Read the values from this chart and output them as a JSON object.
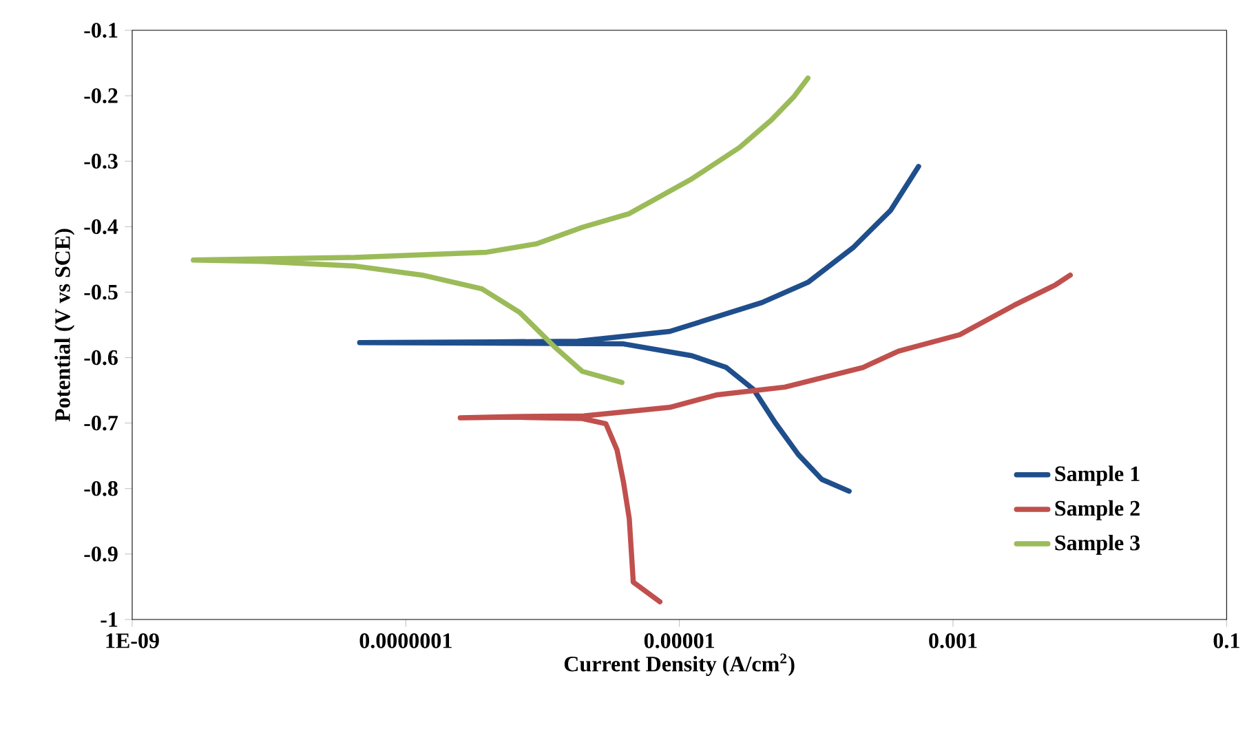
{
  "chart_data": {
    "type": "line",
    "xlabel": "Current Density (A/cm$^{2}$)",
    "ylabel": "Potential (V vs SCE)",
    "log": "x",
    "xlim": [
      1e-09,
      0.1
    ],
    "ylim": [
      -1,
      -0.1
    ],
    "xticks": [
      {
        "value": 1e-09,
        "label": "1E-09"
      },
      {
        "value": 1e-07,
        "label": "0.0000001"
      },
      {
        "value": 1e-05,
        "label": "0.00001"
      },
      {
        "value": 0.001,
        "label": "0.001"
      },
      {
        "value": 0.1,
        "label": "0.1"
      }
    ],
    "yticks": [
      -1,
      -0.9,
      -0.8,
      -0.7,
      -0.6,
      -0.5,
      -0.4,
      -0.3,
      -0.2,
      -0.1
    ],
    "grid": false,
    "legend": "bottom right",
    "marker": "none",
    "line_style": "solid",
    "series": [
      {
        "name": "Sample 1",
        "color": "#1f4e8c",
        "x": [
          0.000174,
          0.00011,
          7.4e-05,
          5e-05,
          3.5e-05,
          2.2e-05,
          1.23e-05,
          3.9e-06,
          4.3e-07,
          4.6e-08,
          4.3e-07,
          1.8e-06,
          8.5e-06,
          4e-05,
          8.7e-05,
          0.000186,
          0.00035,
          0.00056
        ],
        "values": [
          -0.804,
          -0.786,
          -0.748,
          -0.699,
          -0.649,
          -0.615,
          -0.597,
          -0.579,
          -0.578,
          -0.577,
          -0.576,
          -0.575,
          -0.56,
          -0.516,
          -0.485,
          -0.432,
          -0.375,
          -0.308
        ]
      },
      {
        "name": "Sample 2",
        "color": "#c0504d",
        "x": [
          7.2e-06,
          4.6e-06,
          4.3e-06,
          3.9e-06,
          3.5e-06,
          2.9e-06,
          1.95e-06,
          6.2e-07,
          2.5e-07,
          6.2e-07,
          2e-06,
          8.5e-06,
          1.86e-05,
          5.9e-05,
          0.00022,
          0.0004,
          0.00112,
          0.0028,
          0.0056,
          0.0072
        ],
        "values": [
          -0.973,
          -0.943,
          -0.846,
          -0.79,
          -0.741,
          -0.701,
          -0.693,
          -0.691,
          -0.692,
          -0.69,
          -0.689,
          -0.676,
          -0.657,
          -0.645,
          -0.615,
          -0.59,
          -0.565,
          -0.52,
          -0.489,
          -0.474
        ]
      },
      {
        "name": "Sample 3",
        "color": "#9bbb59",
        "x": [
          3.8e-06,
          1.95e-06,
          1.23e-06,
          6.8e-07,
          3.6e-07,
          1.32e-07,
          4.2e-08,
          8.9e-09,
          2.8e-09,
          4.2e-08,
          3.9e-07,
          9.1e-07,
          1.95e-06,
          4.3e-06,
          1.23e-05,
          2.75e-05,
          4.7e-05,
          6.9e-05,
          8.7e-05
        ],
        "values": [
          -0.638,
          -0.621,
          -0.584,
          -0.531,
          -0.495,
          -0.474,
          -0.46,
          -0.453,
          -0.451,
          -0.447,
          -0.439,
          -0.426,
          -0.401,
          -0.38,
          -0.327,
          -0.279,
          -0.237,
          -0.201,
          -0.173
        ]
      }
    ]
  }
}
